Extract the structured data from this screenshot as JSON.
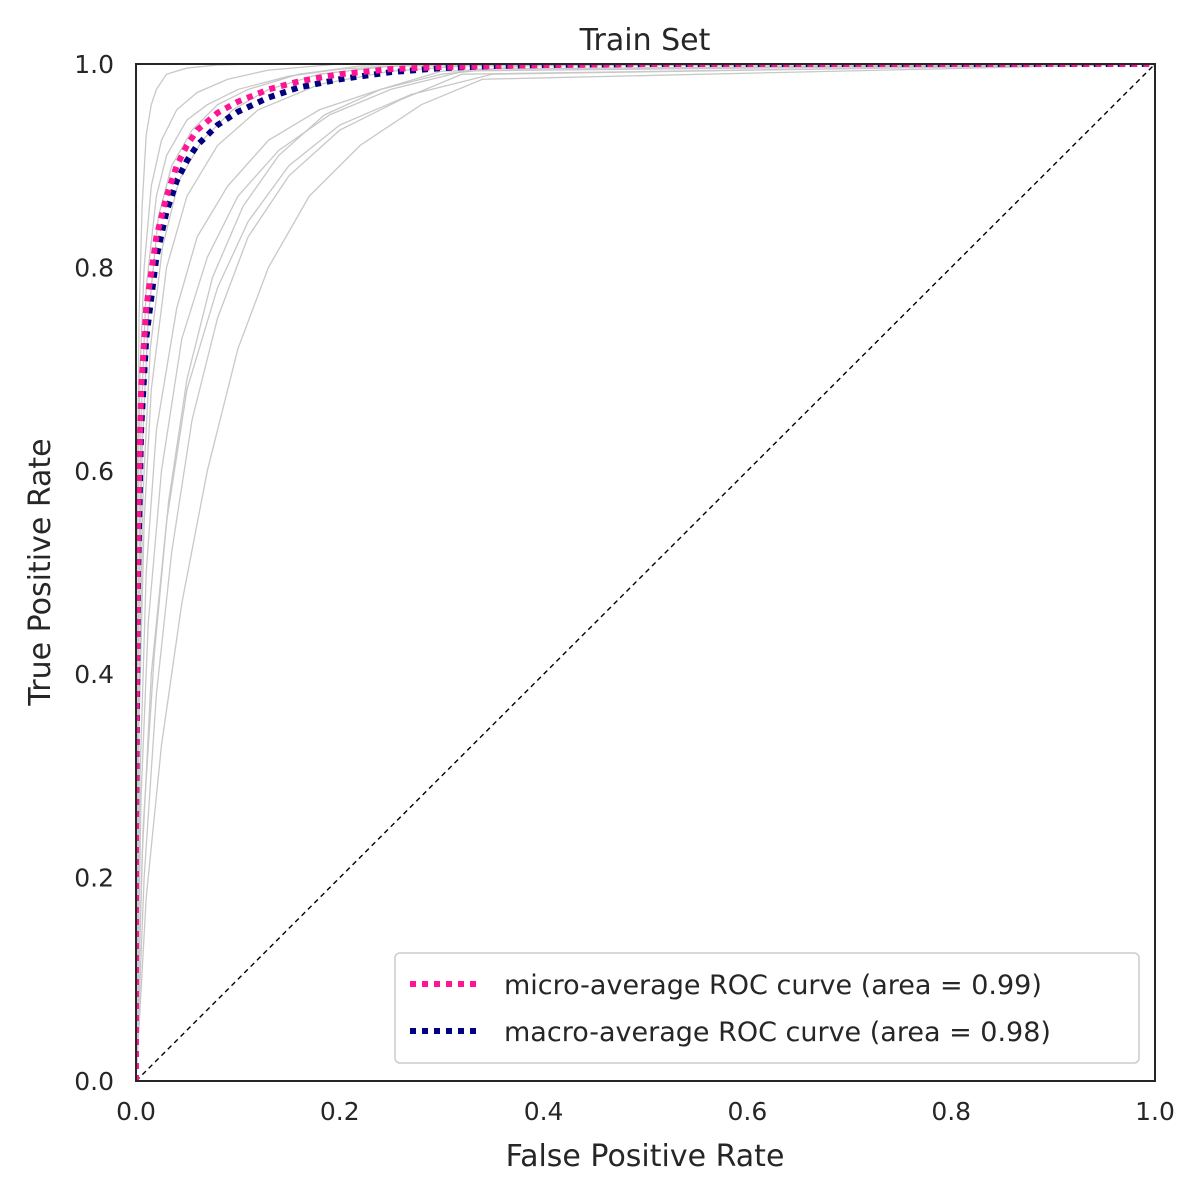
{
  "chart_data": {
    "type": "line",
    "title": "Train Set",
    "xlabel": "False Positive Rate",
    "ylabel": "True Positive Rate",
    "xlim": [
      0.0,
      1.0
    ],
    "ylim": [
      0.0,
      1.0
    ],
    "x_ticks": [
      "0.0",
      "0.2",
      "0.4",
      "0.6",
      "0.8",
      "1.0"
    ],
    "y_ticks": [
      "0.0",
      "0.2",
      "0.4",
      "0.6",
      "0.8",
      "1.0"
    ],
    "grid": false,
    "legend_position": "bottom-right",
    "series": [
      {
        "name": "micro-average ROC curve (area = 0.99)",
        "color": "#ff1493",
        "style": "dotted",
        "x": [
          0.0,
          0.0,
          0.002,
          0.005,
          0.01,
          0.02,
          0.03,
          0.04,
          0.05,
          0.06,
          0.08,
          0.1,
          0.13,
          0.16,
          0.2,
          0.25,
          0.3,
          0.35,
          0.4,
          0.5,
          0.7,
          1.0
        ],
        "y": [
          0.0,
          0.3,
          0.55,
          0.68,
          0.76,
          0.83,
          0.87,
          0.9,
          0.92,
          0.935,
          0.952,
          0.963,
          0.975,
          0.983,
          0.99,
          0.995,
          0.997,
          0.998,
          0.999,
          1.0,
          1.0,
          1.0
        ]
      },
      {
        "name": "macro-average ROC curve (area = 0.98)",
        "color": "#000080",
        "style": "dotted",
        "x": [
          0.0,
          0.0,
          0.002,
          0.005,
          0.01,
          0.02,
          0.03,
          0.04,
          0.05,
          0.06,
          0.08,
          0.1,
          0.13,
          0.16,
          0.2,
          0.25,
          0.3,
          0.35,
          0.4,
          0.5,
          0.7,
          1.0
        ],
        "y": [
          0.0,
          0.25,
          0.5,
          0.64,
          0.73,
          0.81,
          0.855,
          0.885,
          0.905,
          0.92,
          0.94,
          0.953,
          0.967,
          0.977,
          0.985,
          0.992,
          0.996,
          0.998,
          0.999,
          1.0,
          1.0,
          1.0
        ]
      }
    ],
    "per_class_curves": [
      {
        "x": [
          0,
          0.001,
          0.003,
          0.006,
          0.01,
          0.015,
          0.02,
          0.03,
          0.05,
          0.08,
          0.12,
          0.2,
          0.3,
          1.0
        ],
        "y": [
          0,
          0.55,
          0.75,
          0.86,
          0.93,
          0.96,
          0.975,
          0.99,
          0.996,
          0.999,
          1.0,
          1.0,
          1.0,
          1.0
        ]
      },
      {
        "x": [
          0,
          0.002,
          0.005,
          0.01,
          0.02,
          0.03,
          0.05,
          0.07,
          0.1,
          0.15,
          0.2,
          0.3,
          1.0
        ],
        "y": [
          0,
          0.45,
          0.65,
          0.78,
          0.87,
          0.91,
          0.945,
          0.96,
          0.975,
          0.988,
          0.995,
          1.0,
          1.0
        ]
      },
      {
        "x": [
          0,
          0.003,
          0.008,
          0.015,
          0.03,
          0.05,
          0.08,
          0.12,
          0.18,
          0.25,
          0.35,
          1.0
        ],
        "y": [
          0,
          0.35,
          0.55,
          0.68,
          0.8,
          0.87,
          0.92,
          0.955,
          0.98,
          0.993,
          1.0,
          1.0
        ]
      },
      {
        "x": [
          0,
          0.004,
          0.01,
          0.02,
          0.04,
          0.06,
          0.09,
          0.13,
          0.18,
          0.24,
          0.3,
          0.4,
          1.0
        ],
        "y": [
          0,
          0.3,
          0.5,
          0.64,
          0.76,
          0.83,
          0.88,
          0.925,
          0.955,
          0.975,
          0.99,
          1.0,
          1.0
        ]
      },
      {
        "x": [
          0,
          0.005,
          0.012,
          0.025,
          0.045,
          0.07,
          0.1,
          0.14,
          0.19,
          0.25,
          0.33,
          1.0
        ],
        "y": [
          0,
          0.28,
          0.45,
          0.6,
          0.73,
          0.81,
          0.87,
          0.915,
          0.95,
          0.975,
          0.995,
          1.0
        ]
      },
      {
        "x": [
          0,
          0.006,
          0.015,
          0.03,
          0.05,
          0.08,
          0.11,
          0.15,
          0.2,
          0.27,
          0.35,
          1.0
        ],
        "y": [
          0,
          0.22,
          0.4,
          0.55,
          0.68,
          0.78,
          0.845,
          0.9,
          0.94,
          0.97,
          0.99,
          1.0
        ]
      },
      {
        "x": [
          0,
          0.001,
          0.004,
          0.008,
          0.015,
          0.025,
          0.04,
          0.06,
          0.09,
          0.13,
          0.2,
          1.0
        ],
        "y": [
          0,
          0.5,
          0.7,
          0.8,
          0.88,
          0.925,
          0.955,
          0.972,
          0.985,
          0.994,
          1.0,
          1.0
        ]
      },
      {
        "x": [
          0,
          0.008,
          0.02,
          0.035,
          0.055,
          0.08,
          0.11,
          0.15,
          0.2,
          0.26,
          0.32,
          1.0
        ],
        "y": [
          0,
          0.2,
          0.38,
          0.52,
          0.65,
          0.75,
          0.83,
          0.89,
          0.935,
          0.965,
          0.99,
          1.0
        ]
      },
      {
        "x": [
          0,
          0.002,
          0.006,
          0.012,
          0.022,
          0.035,
          0.055,
          0.08,
          0.11,
          0.16,
          0.22,
          1.0
        ],
        "y": [
          0,
          0.4,
          0.62,
          0.75,
          0.85,
          0.9,
          0.935,
          0.96,
          0.975,
          0.99,
          0.998,
          1.0
        ]
      },
      {
        "x": [
          0,
          0.01,
          0.025,
          0.045,
          0.07,
          0.1,
          0.13,
          0.17,
          0.22,
          0.28,
          0.34,
          1.0
        ],
        "y": [
          0,
          0.18,
          0.33,
          0.47,
          0.6,
          0.72,
          0.8,
          0.87,
          0.92,
          0.96,
          0.985,
          1.0
        ]
      },
      {
        "x": [
          0,
          0.003,
          0.007,
          0.014,
          0.026,
          0.042,
          0.065,
          0.095,
          0.13,
          0.18,
          0.25,
          1.0
        ],
        "y": [
          0,
          0.38,
          0.58,
          0.72,
          0.82,
          0.885,
          0.925,
          0.955,
          0.975,
          0.99,
          0.998,
          1.0
        ]
      },
      {
        "x": [
          0,
          0.007,
          0.018,
          0.032,
          0.05,
          0.075,
          0.105,
          0.14,
          0.185,
          0.24,
          0.3,
          1.0
        ],
        "y": [
          0,
          0.25,
          0.42,
          0.57,
          0.69,
          0.79,
          0.86,
          0.91,
          0.95,
          0.975,
          0.993,
          1.0
        ]
      }
    ],
    "diagonal": {
      "x": [
        0,
        1
      ],
      "y": [
        0,
        1
      ],
      "color": "#000000",
      "style": "dashed"
    }
  }
}
